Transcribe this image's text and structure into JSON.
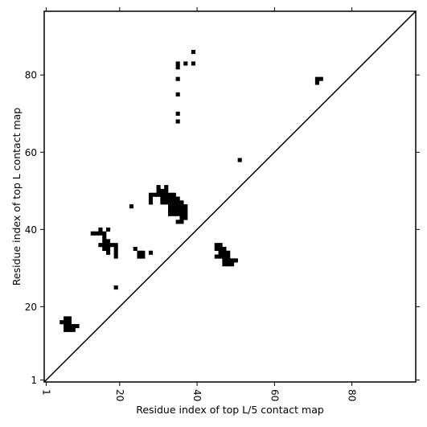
{
  "chart_data": {
    "type": "heatmap",
    "title": "",
    "xlabel": "Residue index of top L/5 contact map",
    "ylabel": "Residue index of top L contact map",
    "xlim": [
      0.5,
      96.5
    ],
    "ylim": [
      0.5,
      96.5
    ],
    "x_ticks": [
      1,
      20,
      40,
      60,
      80
    ],
    "y_ticks": [
      1,
      20,
      40,
      60,
      80
    ],
    "x_tick_labels": [
      "1",
      "20",
      "40",
      "60",
      "80"
    ],
    "y_tick_labels": [
      "1",
      "20",
      "40",
      "60",
      "80"
    ],
    "x_tick_rotation": -90,
    "grid": false,
    "diagonal_line": {
      "from": [
        0.5,
        0.5
      ],
      "to": [
        96.5,
        96.5
      ]
    },
    "colors": {
      "contact": "#000000",
      "background": "#ffffff",
      "frame": "#000000"
    },
    "contacts_upper_left": {
      "description": "top L contact map",
      "cells": [
        [
          5,
          16
        ],
        [
          6,
          15
        ],
        [
          6,
          16
        ],
        [
          6,
          17
        ],
        [
          7,
          15
        ],
        [
          7,
          16
        ],
        [
          7,
          17
        ],
        [
          6,
          14
        ],
        [
          7,
          14
        ],
        [
          8,
          15
        ],
        [
          8,
          14
        ],
        [
          9,
          15
        ],
        [
          13,
          39
        ],
        [
          14,
          39
        ],
        [
          15,
          39
        ],
        [
          15,
          40
        ],
        [
          16,
          39
        ],
        [
          16,
          38
        ],
        [
          16,
          37
        ],
        [
          17,
          37
        ],
        [
          17,
          40
        ],
        [
          15,
          36
        ],
        [
          16,
          36
        ],
        [
          17,
          36
        ],
        [
          18,
          36
        ],
        [
          19,
          36
        ],
        [
          16,
          35
        ],
        [
          17,
          35
        ],
        [
          17,
          34
        ],
        [
          19,
          35
        ],
        [
          19,
          34
        ],
        [
          19,
          33
        ],
        [
          19,
          25
        ],
        [
          23,
          46
        ],
        [
          24,
          35
        ],
        [
          25,
          34
        ],
        [
          26,
          34
        ],
        [
          25,
          33
        ],
        [
          26,
          33
        ],
        [
          28,
          34
        ],
        [
          28,
          49
        ],
        [
          29,
          49
        ],
        [
          30,
          49
        ],
        [
          28,
          48
        ],
        [
          28,
          47
        ],
        [
          30,
          51
        ],
        [
          30,
          50
        ],
        [
          31,
          50
        ],
        [
          32,
          51
        ],
        [
          32,
          50
        ],
        [
          33,
          49
        ],
        [
          34,
          49
        ],
        [
          31,
          49
        ],
        [
          32,
          49
        ],
        [
          31,
          48
        ],
        [
          32,
          48
        ],
        [
          33,
          48
        ],
        [
          34,
          48
        ],
        [
          35,
          48
        ],
        [
          31,
          47
        ],
        [
          32,
          47
        ],
        [
          33,
          47
        ],
        [
          34,
          47
        ],
        [
          35,
          47
        ],
        [
          36,
          47
        ],
        [
          33,
          46
        ],
        [
          34,
          46
        ],
        [
          35,
          46
        ],
        [
          36,
          46
        ],
        [
          37,
          46
        ],
        [
          33,
          45
        ],
        [
          34,
          45
        ],
        [
          35,
          45
        ],
        [
          36,
          45
        ],
        [
          37,
          45
        ],
        [
          33,
          44
        ],
        [
          34,
          44
        ],
        [
          35,
          44
        ],
        [
          36,
          44
        ],
        [
          37,
          44
        ],
        [
          36,
          43
        ],
        [
          37,
          43
        ],
        [
          35,
          42
        ],
        [
          36,
          42
        ],
        [
          35,
          68
        ],
        [
          35,
          70
        ],
        [
          35,
          75
        ],
        [
          35,
          79
        ],
        [
          35,
          82
        ],
        [
          35,
          83
        ],
        [
          37,
          83
        ],
        [
          39,
          83
        ],
        [
          39,
          86
        ],
        [
          51,
          58
        ],
        [
          71,
          78
        ],
        [
          71,
          79
        ],
        [
          72,
          79
        ]
      ]
    },
    "contacts_lower_right": {
      "description": "top L/5 contact map",
      "cells": [
        [
          45,
          36
        ],
        [
          46,
          36
        ],
        [
          45,
          35
        ],
        [
          46,
          35
        ],
        [
          46,
          34
        ],
        [
          47,
          35
        ],
        [
          47,
          34
        ],
        [
          48,
          34
        ],
        [
          45,
          33
        ],
        [
          46,
          33
        ],
        [
          47,
          33
        ],
        [
          48,
          33
        ],
        [
          47,
          32
        ],
        [
          48,
          32
        ],
        [
          49,
          32
        ],
        [
          50,
          32
        ],
        [
          47,
          31
        ],
        [
          48,
          31
        ],
        [
          49,
          31
        ]
      ]
    }
  }
}
